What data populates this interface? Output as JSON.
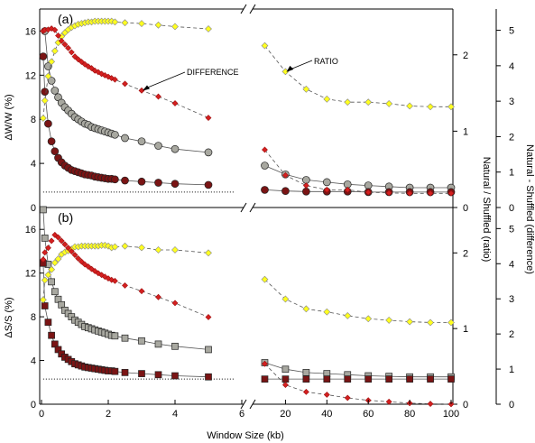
{
  "chart_data": {
    "type": "scatter",
    "xlabel": "Window Size (kb)",
    "x_segments": [
      {
        "name": "left",
        "xlim": [
          0,
          6
        ],
        "ticks": [
          0,
          2,
          4,
          6
        ]
      },
      {
        "name": "right",
        "xlim": [
          5,
          100
        ],
        "ticks": [
          20,
          40,
          60,
          80,
          100
        ]
      }
    ],
    "colors": {
      "natural": "#a8a8a0",
      "shuffled": "#7a1414",
      "ratio": "#ffff20",
      "difference": "#d42020"
    },
    "panels": [
      {
        "label": "(a)",
        "ylabel": "ΔW/W (%)",
        "ylim": [
          0,
          18
        ],
        "yticks": [
          0,
          4,
          8,
          12,
          16
        ],
        "marker": "circle",
        "ratio_axis": {
          "title": "Natural / Shuffled (ratio)",
          "lim": [
            0,
            2.6
          ],
          "ticks": [
            0,
            1,
            2
          ]
        },
        "diff_axis": {
          "title": "Natural - Shuffled (difference)",
          "lim": [
            0,
            5.6
          ],
          "ticks": [
            0,
            1,
            2,
            3,
            4,
            5
          ]
        },
        "baseline_y": 1.4,
        "annotations": [
          {
            "text": "DIFFERENCE",
            "arrow_to": [
              3,
              10.6
            ]
          },
          {
            "text": "RATIO",
            "arrow_to": [
              20,
              12.2
            ]
          }
        ],
        "series": [
          {
            "name": "natural",
            "axis": "left",
            "x": [
              0.1,
              0.2,
              0.3,
              0.4,
              0.5,
              0.6,
              0.7,
              0.8,
              0.9,
              1.0,
              1.1,
              1.2,
              1.3,
              1.4,
              1.5,
              1.6,
              1.7,
              1.8,
              1.9,
              2.0,
              2.1,
              2.2,
              2.5,
              3,
              3.5,
              4,
              5,
              10,
              20,
              30,
              40,
              50,
              60,
              70,
              80,
              90,
              100
            ],
            "y": [
              16,
              12.8,
              11.5,
              10.6,
              10.0,
              9.5,
              9.1,
              8.8,
              8.5,
              8.2,
              8.0,
              7.8,
              7.6,
              7.5,
              7.3,
              7.2,
              7.1,
              7.0,
              6.9,
              6.8,
              6.7,
              6.6,
              6.3,
              6.0,
              5.6,
              5.3,
              5.0,
              3.8,
              3.0,
              2.5,
              2.3,
              2.1,
              2.0,
              1.9,
              1.8,
              1.8,
              1.8
            ]
          },
          {
            "name": "shuffled",
            "axis": "left",
            "x": [
              0.05,
              0.1,
              0.2,
              0.3,
              0.4,
              0.5,
              0.6,
              0.7,
              0.8,
              0.9,
              1.0,
              1.1,
              1.2,
              1.3,
              1.4,
              1.5,
              1.6,
              1.7,
              1.8,
              1.9,
              2.0,
              2.1,
              2.2,
              2.5,
              3,
              3.5,
              4,
              5,
              10,
              20,
              30,
              40,
              50,
              60,
              70,
              80,
              90,
              100
            ],
            "y": [
              13.7,
              10.5,
              7.6,
              6.0,
              5.1,
              4.5,
              4.1,
              3.8,
              3.6,
              3.4,
              3.3,
              3.2,
              3.1,
              3.0,
              2.95,
              2.9,
              2.8,
              2.75,
              2.7,
              2.65,
              2.6,
              2.6,
              2.55,
              2.45,
              2.35,
              2.25,
              2.15,
              2.05,
              1.6,
              1.5,
              1.45,
              1.45,
              1.45,
              1.4,
              1.4,
              1.4,
              1.4,
              1.4
            ]
          },
          {
            "name": "ratio",
            "axis": "ratio",
            "x": [
              0.05,
              0.1,
              0.2,
              0.3,
              0.4,
              0.5,
              0.6,
              0.7,
              0.8,
              0.9,
              1.0,
              1.1,
              1.2,
              1.3,
              1.4,
              1.5,
              1.6,
              1.7,
              1.8,
              1.9,
              2.0,
              2.1,
              2.2,
              2.5,
              3,
              3.5,
              4,
              5,
              10,
              20,
              30,
              40,
              50,
              60,
              70,
              80,
              90,
              100
            ],
            "y": [
              1.17,
              1.4,
              1.72,
              1.91,
              2.05,
              2.16,
              2.24,
              2.29,
              2.33,
              2.36,
              2.38,
              2.4,
              2.41,
              2.42,
              2.43,
              2.43,
              2.44,
              2.44,
              2.44,
              2.44,
              2.44,
              2.44,
              2.43,
              2.42,
              2.41,
              2.39,
              2.37,
              2.34,
              2.12,
              1.78,
              1.55,
              1.42,
              1.38,
              1.38,
              1.36,
              1.33,
              1.32,
              1.32
            ]
          },
          {
            "name": "difference",
            "axis": "diff",
            "x": [
              0.05,
              0.1,
              0.2,
              0.3,
              0.4,
              0.5,
              0.6,
              0.7,
              0.8,
              0.9,
              1.0,
              1.1,
              1.2,
              1.3,
              1.4,
              1.5,
              1.6,
              1.7,
              1.8,
              1.9,
              2.0,
              2.1,
              2.2,
              2.5,
              3,
              3.5,
              4,
              5,
              10,
              20,
              30,
              40,
              50,
              60,
              70,
              80,
              90,
              100
            ],
            "y": [
              4.98,
              5.01,
              5.02,
              5.05,
              5.01,
              4.85,
              4.7,
              4.6,
              4.5,
              4.38,
              4.26,
              4.18,
              4.11,
              4.04,
              3.98,
              3.93,
              3.86,
              3.82,
              3.77,
              3.73,
              3.69,
              3.65,
              3.61,
              3.49,
              3.3,
              3.13,
              2.94,
              2.53,
              1.63,
              0.91,
              0.62,
              0.5,
              0.5,
              0.43,
              0.41,
              0.4,
              0.4,
              0.4
            ]
          }
        ]
      },
      {
        "label": "(b)",
        "ylabel": "ΔS/S (%)",
        "ylim": [
          0,
          18
        ],
        "yticks": [
          0,
          4,
          8,
          12,
          16
        ],
        "marker": "square",
        "ratio_axis": {
          "title": "",
          "lim": [
            0,
            2.6
          ],
          "ticks": [
            0,
            1,
            2
          ]
        },
        "diff_axis": {
          "title": "",
          "lim": [
            0,
            5.6
          ],
          "ticks": [
            0,
            1,
            2,
            3,
            4,
            5
          ]
        },
        "baseline_y": 2.3,
        "annotations": [],
        "series": [
          {
            "name": "natural",
            "axis": "left",
            "x": [
              0.05,
              0.1,
              0.2,
              0.3,
              0.4,
              0.5,
              0.6,
              0.7,
              0.8,
              0.9,
              1.0,
              1.1,
              1.2,
              1.3,
              1.4,
              1.5,
              1.6,
              1.7,
              1.8,
              1.9,
              2.0,
              2.1,
              2.2,
              2.5,
              3,
              3.5,
              4,
              5,
              10,
              20,
              30,
              40,
              50,
              60,
              70,
              80,
              90,
              100
            ],
            "y": [
              17.8,
              15.2,
              12.8,
              11.2,
              10.3,
              9.6,
              9.1,
              8.6,
              8.3,
              8.0,
              7.7,
              7.5,
              7.3,
              7.1,
              7.0,
              6.9,
              6.8,
              6.7,
              6.6,
              6.5,
              6.4,
              6.3,
              6.25,
              6.05,
              5.8,
              5.5,
              5.3,
              5.0,
              3.8,
              3.2,
              2.9,
              2.8,
              2.7,
              2.6,
              2.55,
              2.5,
              2.5,
              2.5
            ]
          },
          {
            "name": "shuffled",
            "axis": "left",
            "x": [
              0.05,
              0.1,
              0.2,
              0.3,
              0.4,
              0.5,
              0.6,
              0.7,
              0.8,
              0.9,
              1.0,
              1.1,
              1.2,
              1.3,
              1.4,
              1.5,
              1.6,
              1.7,
              1.8,
              1.9,
              2.0,
              2.1,
              2.2,
              2.5,
              3,
              3.5,
              4,
              5,
              10,
              20,
              30,
              40,
              50,
              60,
              70,
              80,
              90,
              100
            ],
            "y": [
              12.9,
              9.0,
              7.5,
              6.3,
              5.5,
              5.0,
              4.6,
              4.3,
              4.1,
              3.9,
              3.7,
              3.6,
              3.5,
              3.4,
              3.35,
              3.3,
              3.25,
              3.2,
              3.15,
              3.1,
              3.05,
              3.05,
              3.0,
              2.9,
              2.8,
              2.7,
              2.6,
              2.5,
              2.3,
              2.3,
              2.3,
              2.3,
              2.3,
              2.3,
              2.3,
              2.3,
              2.3,
              2.3
            ]
          },
          {
            "name": "ratio",
            "axis": "ratio",
            "x": [
              0.05,
              0.1,
              0.2,
              0.3,
              0.4,
              0.5,
              0.6,
              0.7,
              0.8,
              0.9,
              1.0,
              1.1,
              1.2,
              1.3,
              1.4,
              1.5,
              1.6,
              1.7,
              1.8,
              1.9,
              2.0,
              2.1,
              2.2,
              2.5,
              3,
              3.5,
              4,
              5,
              10,
              20,
              30,
              40,
              50,
              60,
              70,
              80,
              90,
              100
            ],
            "y": [
              1.38,
              1.64,
              1.71,
              1.78,
              1.87,
              1.92,
              1.98,
              2.01,
              2.03,
              2.05,
              2.08,
              2.08,
              2.09,
              2.09,
              2.09,
              2.09,
              2.09,
              2.09,
              2.1,
              2.1,
              2.09,
              2.07,
              2.08,
              2.09,
              2.07,
              2.04,
              2.04,
              2.0,
              1.65,
              1.39,
              1.26,
              1.22,
              1.17,
              1.13,
              1.11,
              1.09,
              1.08,
              1.08
            ]
          },
          {
            "name": "difference",
            "axis": "diff",
            "x": [
              0.05,
              0.1,
              0.2,
              0.3,
              0.4,
              0.5,
              0.6,
              0.7,
              0.8,
              0.9,
              1.0,
              1.1,
              1.2,
              1.3,
              1.4,
              1.5,
              1.6,
              1.7,
              1.8,
              1.9,
              2.0,
              2.1,
              2.2,
              2.5,
              3,
              3.5,
              4,
              5,
              10,
              20,
              30,
              40,
              50,
              60,
              70,
              80,
              90,
              100
            ],
            "y": [
              4.12,
              4.32,
              4.45,
              4.65,
              4.82,
              4.75,
              4.65,
              4.55,
              4.45,
              4.35,
              4.25,
              4.15,
              4.06,
              3.98,
              3.92,
              3.85,
              3.79,
              3.73,
              3.68,
              3.63,
              3.58,
              3.54,
              3.51,
              3.38,
              3.22,
              3.05,
              2.88,
              2.48,
              1.15,
              0.55,
              0.35,
              0.27,
              0.18,
              0.11,
              0.07,
              0.03,
              0.01,
              0.0
            ]
          }
        ]
      }
    ]
  }
}
